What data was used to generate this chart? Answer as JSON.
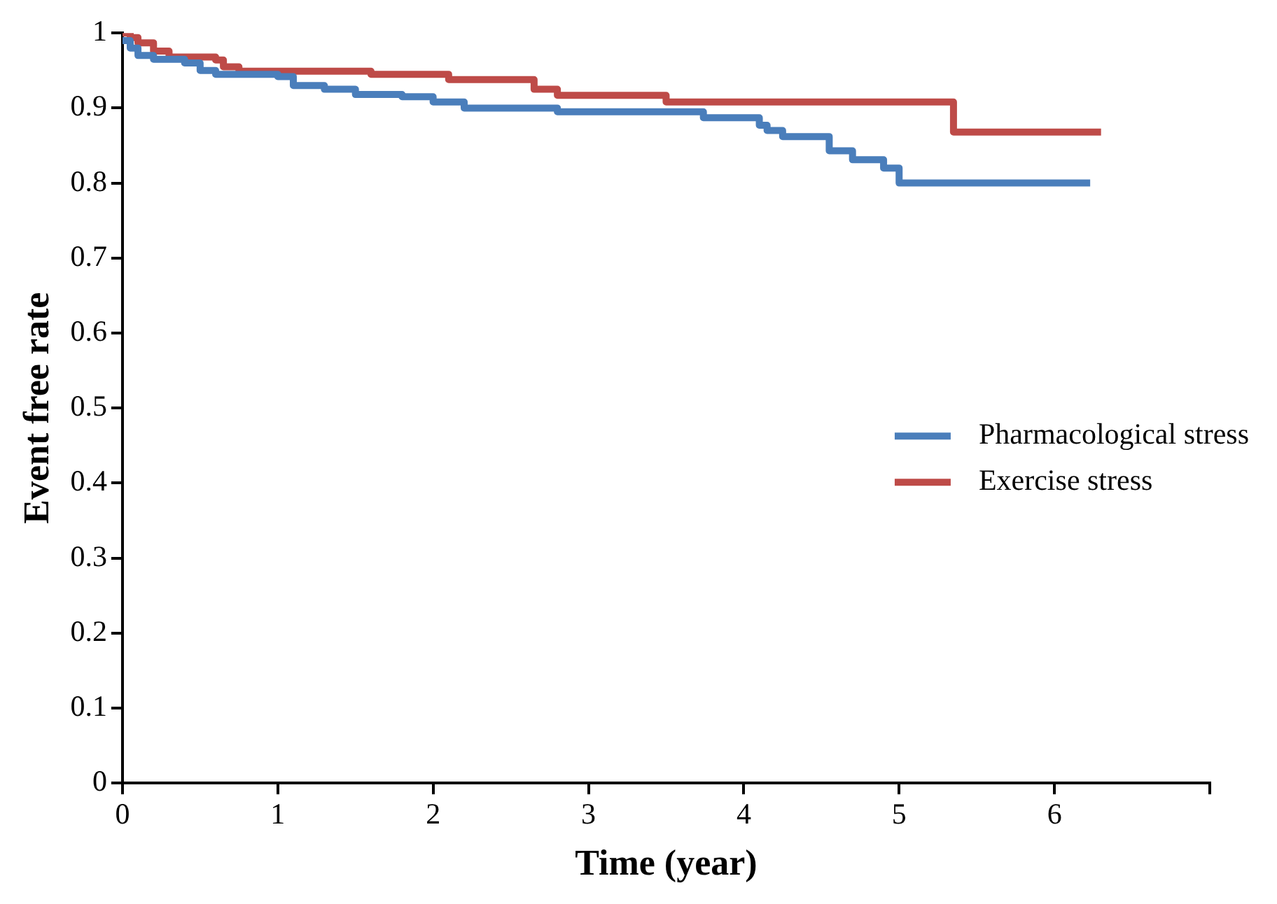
{
  "chart_data": {
    "type": "step",
    "xlabel": "Time (year)",
    "ylabel": "Event free rate",
    "xlim": [
      0,
      7
    ],
    "xticks": [
      0,
      1,
      2,
      3,
      4,
      5,
      6,
      {
        "value": 7,
        "label": null
      }
    ],
    "ylim": [
      0,
      1
    ],
    "yticks": [
      0,
      0.1,
      0.2,
      0.3,
      0.4,
      0.5,
      0.6,
      0.7,
      0.8,
      0.9,
      1
    ],
    "grid": false,
    "legend": "right",
    "line_style": "solid",
    "marker": "none",
    "series": [
      {
        "name": "Pharmacological stress",
        "color": "#4a7ebb",
        "x": [
          0,
          0.05,
          0.1,
          0.2,
          0.4,
          0.5,
          0.6,
          1.0,
          1.1,
          1.3,
          1.5,
          1.8,
          2.0,
          2.2,
          2.8,
          3.74,
          4.1,
          4.15,
          4.25,
          4.55,
          4.7,
          4.9,
          5.0,
          6.23
        ],
        "values": [
          0.99,
          0.98,
          0.97,
          0.965,
          0.96,
          0.95,
          0.945,
          0.942,
          0.93,
          0.925,
          0.918,
          0.915,
          0.908,
          0.9,
          0.895,
          0.887,
          0.877,
          0.87,
          0.862,
          0.843,
          0.831,
          0.82,
          0.8,
          0.8
        ]
      },
      {
        "name": "Exercise stress",
        "color": "#be4b48",
        "x": [
          0,
          0.05,
          0.1,
          0.2,
          0.3,
          0.6,
          0.65,
          0.75,
          1.6,
          2.1,
          2.65,
          2.8,
          3.5,
          5.35,
          6.3
        ],
        "values": [
          1.0,
          0.994,
          0.987,
          0.976,
          0.968,
          0.964,
          0.955,
          0.949,
          0.945,
          0.938,
          0.925,
          0.917,
          0.908,
          0.868,
          0.868
        ]
      }
    ]
  }
}
